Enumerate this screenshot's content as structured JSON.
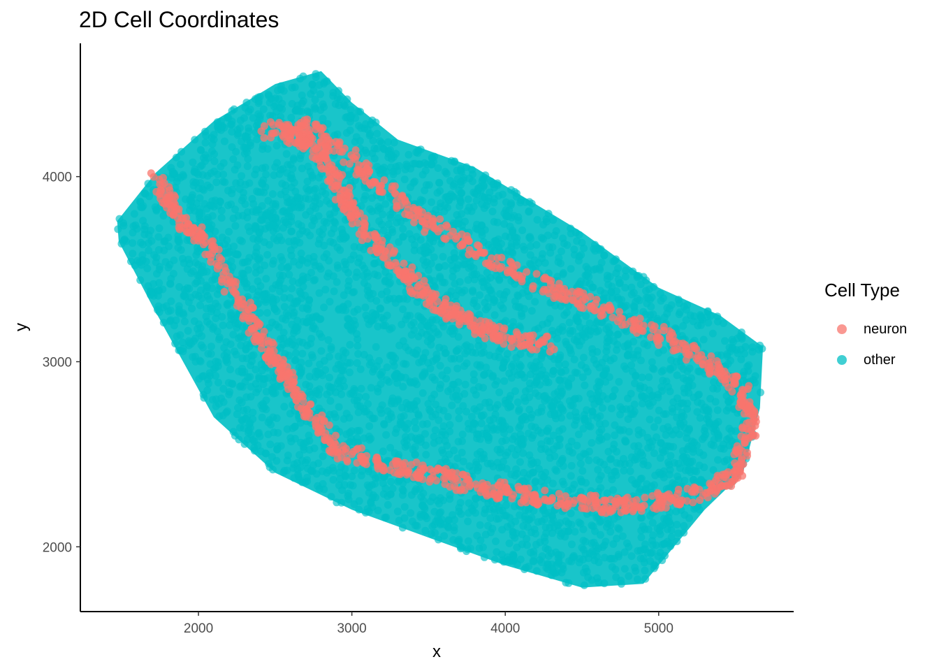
{
  "chart_data": {
    "type": "scatter",
    "title": "2D Cell Coordinates",
    "xlabel": "x",
    "ylabel": "y",
    "xlim": [
      1230,
      5880
    ],
    "ylim": [
      1650,
      4720
    ],
    "xticks": [
      2000,
      3000,
      4000,
      5000
    ],
    "yticks": [
      2000,
      3000,
      4000
    ],
    "grid": false,
    "legend": {
      "title": "Cell Type",
      "position": "right"
    },
    "series": [
      {
        "name": "neuron",
        "color": "#F8766D"
      },
      {
        "name": "other",
        "color": "#00BFC4"
      }
    ],
    "region_outline": [
      [
        1470,
        3760
      ],
      [
        1720,
        4020
      ],
      [
        2100,
        4300
      ],
      [
        2500,
        4500
      ],
      [
        2800,
        4570
      ],
      [
        3000,
        4400
      ],
      [
        3300,
        4200
      ],
      [
        3800,
        4050
      ],
      [
        4500,
        3700
      ],
      [
        5000,
        3400
      ],
      [
        5400,
        3250
      ],
      [
        5680,
        3080
      ],
      [
        5660,
        2750
      ],
      [
        5550,
        2400
      ],
      [
        5300,
        2200
      ],
      [
        5100,
        2000
      ],
      [
        4900,
        1800
      ],
      [
        4500,
        1780
      ],
      [
        4000,
        1900
      ],
      [
        3500,
        2050
      ],
      [
        3000,
        2200
      ],
      [
        2500,
        2400
      ],
      [
        2100,
        2700
      ],
      [
        1700,
        3300
      ],
      [
        1480,
        3650
      ]
    ],
    "neuron_bands": [
      [
        [
          1720,
          4010
        ],
        [
          1850,
          3800
        ],
        [
          2050,
          3650
        ],
        [
          2300,
          3300
        ],
        [
          2420,
          3100
        ],
        [
          2560,
          2950
        ],
        [
          2700,
          2750
        ],
        [
          2900,
          2520
        ],
        [
          3200,
          2450
        ],
        [
          3500,
          2400
        ],
        [
          3800,
          2330
        ],
        [
          4100,
          2280
        ],
        [
          4400,
          2250
        ],
        [
          4700,
          2220
        ],
        [
          5000,
          2240
        ],
        [
          5300,
          2300
        ],
        [
          5500,
          2400
        ],
        [
          5600,
          2650
        ],
        [
          5550,
          2850
        ],
        [
          5300,
          3000
        ],
        [
          5000,
          3150
        ],
        [
          4600,
          3300
        ],
        [
          4300,
          3400
        ],
        [
          3900,
          3550
        ],
        [
          3500,
          3750
        ],
        [
          3200,
          3930
        ],
        [
          2950,
          4130
        ],
        [
          2700,
          4270
        ],
        [
          2450,
          4250
        ]
      ],
      [
        [
          2600,
          4230
        ],
        [
          2780,
          4150
        ],
        [
          2900,
          3980
        ],
        [
          3000,
          3800
        ],
        [
          3200,
          3600
        ],
        [
          3400,
          3420
        ],
        [
          3600,
          3280
        ],
        [
          3800,
          3200
        ],
        [
          4000,
          3130
        ],
        [
          4300,
          3090
        ]
      ]
    ]
  }
}
